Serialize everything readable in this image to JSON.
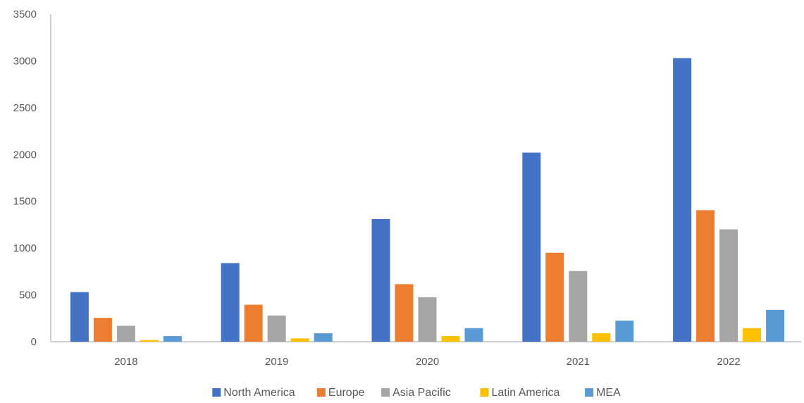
{
  "chart_data": {
    "type": "bar",
    "title": "",
    "xlabel": "",
    "ylabel": "",
    "categories": [
      "2018",
      "2019",
      "2020",
      "2021",
      "2022"
    ],
    "ylim": [
      0,
      3500
    ],
    "yticks": [
      0,
      500,
      1000,
      1500,
      2000,
      2500,
      3000,
      3500
    ],
    "ytick_labels": [
      "0",
      "500",
      "1000",
      "1500",
      "2000",
      "2500",
      "3000",
      "3500"
    ],
    "grid": false,
    "legend_position": "bottom",
    "series": [
      {
        "name": "North America",
        "color": "#4472C4",
        "values": [
          530,
          840,
          1310,
          2020,
          3030
        ]
      },
      {
        "name": "Europe",
        "color": "#ED7D31",
        "values": [
          255,
          395,
          615,
          950,
          1405
        ]
      },
      {
        "name": "Asia Pacific",
        "color": "#A5A5A5",
        "values": [
          170,
          280,
          475,
          755,
          1200
        ]
      },
      {
        "name": "Latin America",
        "color": "#FFC000",
        "values": [
          18,
          35,
          60,
          90,
          145
        ]
      },
      {
        "name": "MEA",
        "color": "#5B9BD5",
        "values": [
          60,
          90,
          145,
          225,
          340
        ]
      }
    ]
  }
}
